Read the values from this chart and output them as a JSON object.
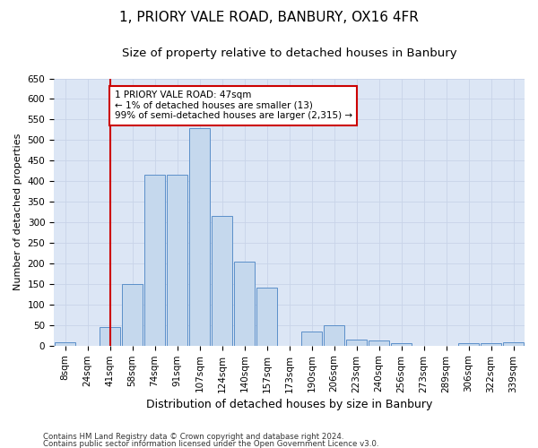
{
  "title": "1, PRIORY VALE ROAD, BANBURY, OX16 4FR",
  "subtitle": "Size of property relative to detached houses in Banbury",
  "xlabel": "Distribution of detached houses by size in Banbury",
  "ylabel": "Number of detached properties",
  "categories": [
    "8sqm",
    "24sqm",
    "41sqm",
    "58sqm",
    "74sqm",
    "91sqm",
    "107sqm",
    "124sqm",
    "140sqm",
    "157sqm",
    "173sqm",
    "190sqm",
    "206sqm",
    "223sqm",
    "240sqm",
    "256sqm",
    "273sqm",
    "289sqm",
    "306sqm",
    "322sqm",
    "339sqm"
  ],
  "values": [
    8,
    0,
    45,
    150,
    415,
    415,
    530,
    315,
    205,
    140,
    0,
    35,
    50,
    15,
    13,
    5,
    0,
    0,
    5,
    5,
    8
  ],
  "bar_color": "#c5d8ed",
  "bar_edge_color": "#5b8fc9",
  "vline_color": "#cc0000",
  "vline_x_index": 2,
  "annotation_text": "1 PRIORY VALE ROAD: 47sqm\n← 1% of detached houses are smaller (13)\n99% of semi-detached houses are larger (2,315) →",
  "annotation_box_facecolor": "#ffffff",
  "annotation_box_edgecolor": "#cc0000",
  "grid_color": "#c8d4e8",
  "background_color": "#dce6f5",
  "ylim": [
    0,
    650
  ],
  "yticks": [
    0,
    50,
    100,
    150,
    200,
    250,
    300,
    350,
    400,
    450,
    500,
    550,
    600,
    650
  ],
  "title_fontsize": 11,
  "subtitle_fontsize": 9.5,
  "xlabel_fontsize": 9,
  "ylabel_fontsize": 8,
  "tick_fontsize": 7.5,
  "annot_fontsize": 7.5,
  "footer1": "Contains HM Land Registry data © Crown copyright and database right 2024.",
  "footer2": "Contains public sector information licensed under the Open Government Licence v3.0."
}
